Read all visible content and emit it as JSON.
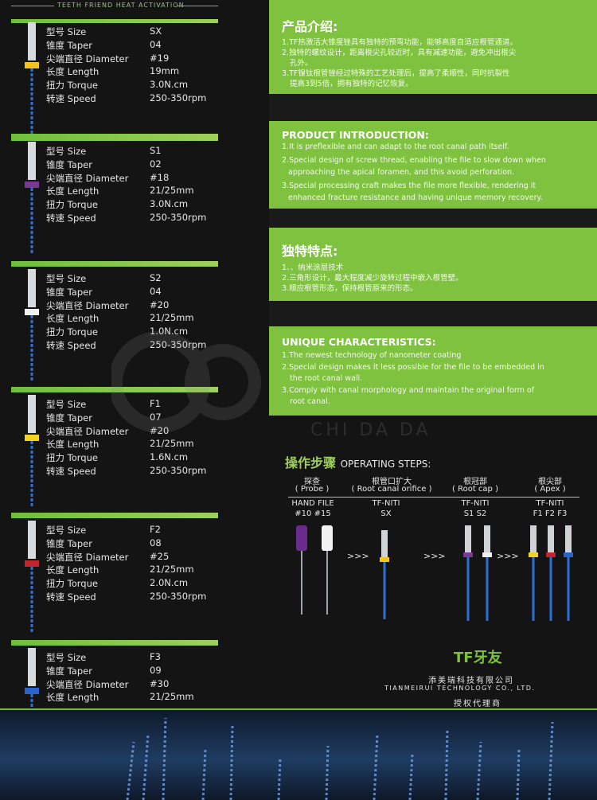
{
  "header": {
    "banner_text": "TEETH FRIEND HEAT ACTIVATION"
  },
  "spec_labels": {
    "size": "型号 Size",
    "taper": "锥度 Taper",
    "diameter": "尖端直径 Diameter",
    "length": "长度 Length",
    "torque": "扭力 Torque",
    "speed": "转速 Speed"
  },
  "files": [
    {
      "size": "SX",
      "taper": "04",
      "diameter": "#19",
      "length": "19mm",
      "torque": "3.0N.cm",
      "speed": "250-350rpm",
      "ring_color": "#f2c41c"
    },
    {
      "size": "S1",
      "taper": "02",
      "diameter": "#18",
      "length": "21/25mm",
      "torque": "3.0N.cm",
      "speed": "250-350rpm",
      "ring_color": "#7a3a94"
    },
    {
      "size": "S2",
      "taper": "04",
      "diameter": "#20",
      "length": "21/25mm",
      "torque": "1.0N.cm",
      "speed": "250-350rpm",
      "ring_color": "#f0f0f0"
    },
    {
      "size": "F1",
      "taper": "07",
      "diameter": "#20",
      "length": "21/25mm",
      "torque": "1.6N.cm",
      "speed": "250-350rpm",
      "ring_color": "#f2d21c"
    },
    {
      "size": "F2",
      "taper": "08",
      "diameter": "#25",
      "length": "21/25mm",
      "torque": "2.0N.cm",
      "speed": "250-350rpm",
      "ring_color": "#c0242c"
    },
    {
      "size": "F3",
      "taper": "09",
      "diameter": "#30",
      "length": "21/25mm",
      "ring_color": "#2a63c9"
    }
  ],
  "product_intro_cn": {
    "title": "产品介绍:",
    "lines": [
      "1.TF热激活大锥度锉具有独特的预弯功能，能够高度自适应根管通道。",
      "2.独特的螺纹设计，距离根尖孔较近时，具有减速功能，避免冲出根尖",
      "孔外。",
      "3.TF镍钛根管锉经过特殊的工艺处理后，提高了柔顺性，同时抗裂性",
      "提高3到5倍，拥有独特的记忆恢复。"
    ]
  },
  "product_intro_en": {
    "title": "PRODUCT INTRODUCTION:",
    "lines": [
      "1.It is preflexible and can adapt to the root canal path itself.",
      "2.Special design of screw thread, enabling the file to slow down when",
      "approaching the apical foramen, and this avoid perforation.",
      "3.Special processing craft makes the file more flexible, rendering it",
      "enhanced fracture resistance and having unique memory recovery."
    ]
  },
  "unique_cn": {
    "title": "独特特点:",
    "lines": [
      "1、、纳米涂层技术",
      "2.三角形设计，最大程度减少旋转过程中嵌入根管壁。",
      "3.顺应根管形态，保持根管原来的形态。"
    ]
  },
  "unique_en": {
    "title": "UNIQUE CHARACTERISTICS:",
    "lines": [
      "1.The newest technology of nanometer coating",
      "2.Special design makes it less possible for the file to be embedded in",
      "the root canal wall.",
      "3.Comply with canal morphology and maintain the original form of",
      "root canal."
    ]
  },
  "watermark": {
    "text": "CHI DA DA"
  },
  "steps": {
    "title_cn": "操作步骤",
    "title_en": "OPERATING STEPS:",
    "columns": [
      {
        "head_cn": "探查",
        "head_en": "( Probe )",
        "tool": "HAND FILE",
        "sizes": "#10    #15"
      },
      {
        "head_cn": "根管口扩大",
        "head_en": "( Root canal orifice )",
        "tool": "TF-NITI",
        "sizes": "SX"
      },
      {
        "head_cn": "根冠部",
        "head_en": "( Root cap )",
        "tool": "TF-NITI",
        "sizes": "S1   S2"
      },
      {
        "head_cn": "根尖部",
        "head_en": "( Apex )",
        "tool": "TF-NITI",
        "sizes": "F1  F2  F3"
      }
    ],
    "arrows": ">>>"
  },
  "brand": {
    "logo": "TF牙友",
    "company_cn": "添美瑞科技有限公司",
    "company_en": "TIANMEIRUI TECHNOLOGY CO., LTD.",
    "agent": "授权代理商"
  },
  "colors": {
    "accent_green": "#7ec23f",
    "background": "#141414"
  }
}
